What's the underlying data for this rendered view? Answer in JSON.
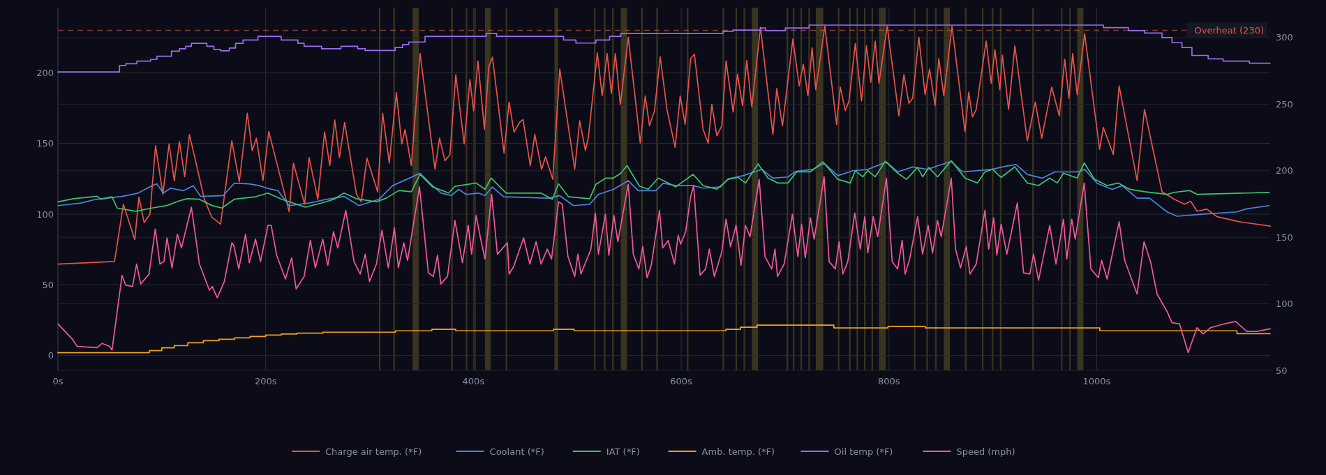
{
  "chart_data": {
    "type": "line",
    "xlim": [
      0,
      1167
    ],
    "xticks": [
      {
        "value": 0,
        "label": "0s"
      },
      {
        "value": 200,
        "label": "200s"
      },
      {
        "value": 400,
        "label": "400s"
      },
      {
        "value": 600,
        "label": "600s"
      },
      {
        "value": 800,
        "label": "800s"
      },
      {
        "value": 1000,
        "label": "1000s"
      }
    ],
    "ylim": [
      -10.5,
      246
    ],
    "yticks": [
      0,
      50,
      100,
      150,
      200
    ],
    "y2lim": [
      50,
      322.5
    ],
    "y2ticks": [
      50,
      100,
      150,
      200,
      250,
      300
    ],
    "grid": true,
    "legend": "bottom",
    "ref_lines": [
      {
        "axis": "y",
        "value": 230,
        "label": "Overheat (230)",
        "color": "#e5534b",
        "line_style": "dashed"
      }
    ],
    "bands": [
      {
        "axis": "x",
        "from": 309,
        "to": 310.5,
        "color": "#4a4224"
      },
      {
        "axis": "x",
        "from": 322.9,
        "to": 324.4,
        "color": "#4a4224"
      },
      {
        "axis": "x",
        "from": 341.4,
        "to": 347.4,
        "color": "#4a4224"
      },
      {
        "axis": "x",
        "from": 378.6,
        "to": 380.1,
        "color": "#4a4224"
      },
      {
        "axis": "x",
        "from": 392.6,
        "to": 394.1,
        "color": "#4a4224"
      },
      {
        "axis": "x",
        "from": 400.7,
        "to": 402.2,
        "color": "#4a4224"
      },
      {
        "axis": "x",
        "from": 411.1,
        "to": 416.6,
        "color": "#4a4224"
      },
      {
        "axis": "x",
        "from": 431,
        "to": 432.5,
        "color": "#4a4224"
      },
      {
        "axis": "x",
        "from": 478,
        "to": 481.5,
        "color": "#4a4224"
      },
      {
        "axis": "x",
        "from": 516,
        "to": 517.5,
        "color": "#4a4224"
      },
      {
        "axis": "x",
        "from": 525.6,
        "to": 527.1,
        "color": "#4a4224"
      },
      {
        "axis": "x",
        "from": 533.5,
        "to": 535,
        "color": "#4a4224"
      },
      {
        "axis": "x",
        "from": 541.9,
        "to": 547.9,
        "color": "#4a4224"
      },
      {
        "axis": "x",
        "from": 561.6,
        "to": 563.1,
        "color": "#4a4224"
      },
      {
        "axis": "x",
        "from": 576,
        "to": 577.5,
        "color": "#4a4224"
      },
      {
        "axis": "x",
        "from": 605.5,
        "to": 607,
        "color": "#4a4224"
      },
      {
        "axis": "x",
        "from": 639.8,
        "to": 641.3,
        "color": "#4a4224"
      },
      {
        "axis": "x",
        "from": 652.3,
        "to": 653.8,
        "color": "#4a4224"
      },
      {
        "axis": "x",
        "from": 660,
        "to": 661.5,
        "color": "#4a4224"
      },
      {
        "axis": "x",
        "from": 668,
        "to": 674,
        "color": "#4a4224"
      },
      {
        "axis": "x",
        "from": 701.5,
        "to": 703,
        "color": "#4a4224"
      },
      {
        "axis": "x",
        "from": 707.5,
        "to": 709,
        "color": "#4a4224"
      },
      {
        "axis": "x",
        "from": 714.8,
        "to": 716.3,
        "color": "#4a4224"
      },
      {
        "axis": "x",
        "from": 722.4,
        "to": 723.9,
        "color": "#4a4224"
      },
      {
        "axis": "x",
        "from": 729.6,
        "to": 736.8,
        "color": "#4a4224"
      },
      {
        "axis": "x",
        "from": 750.8,
        "to": 752.3,
        "color": "#4a4224"
      },
      {
        "axis": "x",
        "from": 761.6,
        "to": 763.1,
        "color": "#4a4224"
      },
      {
        "axis": "x",
        "from": 768.8,
        "to": 770.3,
        "color": "#4a4224"
      },
      {
        "axis": "x",
        "from": 776,
        "to": 777.5,
        "color": "#4a4224"
      },
      {
        "axis": "x",
        "from": 783.2,
        "to": 784.7,
        "color": "#4a4224"
      },
      {
        "axis": "x",
        "from": 790.4,
        "to": 796.9,
        "color": "#4a4224"
      },
      {
        "axis": "x",
        "from": 824,
        "to": 825.5,
        "color": "#4a4224"
      },
      {
        "axis": "x",
        "from": 836,
        "to": 837.5,
        "color": "#4a4224"
      },
      {
        "axis": "x",
        "from": 844.4,
        "to": 845.9,
        "color": "#4a4224"
      },
      {
        "axis": "x",
        "from": 852.8,
        "to": 858.7,
        "color": "#4a4224"
      },
      {
        "axis": "x",
        "from": 873.2,
        "to": 874.7,
        "color": "#4a4224"
      },
      {
        "axis": "x",
        "from": 889.5,
        "to": 891,
        "color": "#4a4224"
      },
      {
        "axis": "x",
        "from": 899.1,
        "to": 900.6,
        "color": "#4a4224"
      },
      {
        "axis": "x",
        "from": 906.8,
        "to": 908.3,
        "color": "#4a4224"
      },
      {
        "axis": "x",
        "from": 938,
        "to": 939.5,
        "color": "#4a4224"
      },
      {
        "axis": "x",
        "from": 965.6,
        "to": 967.1,
        "color": "#4a4224"
      },
      {
        "axis": "x",
        "from": 973.6,
        "to": 975.1,
        "color": "#4a4224"
      },
      {
        "axis": "x",
        "from": 981.2,
        "to": 987.2,
        "color": "#4a4224"
      }
    ],
    "series": [
      {
        "name": "Charge air temp. (*F)",
        "color": "#e5534b",
        "type": "line",
        "x": [
          0,
          54.5,
          63,
          74,
          78,
          83,
          88.6,
          94,
          101,
          107,
          112,
          117,
          122,
          126.6,
          141,
          148,
          156.6,
          167.4,
          174.6,
          182.3,
          187,
          191,
          197.4,
          203,
          222.6,
          226.7,
          237.5,
          241.8,
          250.2,
          256.7,
          261.7,
          266.5,
          271,
          276,
          287.4,
          292,
          297.5,
          307.8,
          312.6,
          319,
          325.8,
          331,
          334.2,
          340.2,
          348.6,
          363,
          367.4,
          372.6,
          377.4,
          383,
          391.1,
          396.6,
          400.2,
          404.3,
          410.6,
          414.7,
          418.3,
          429.5,
          434.3,
          439.1,
          444.7,
          447.8,
          454.7,
          459.1,
          465.6,
          469.4,
          476.4,
          483.1,
          497.5,
          502.3,
          507.8,
          510.7,
          519.3,
          523.9,
          528.7,
          532.8,
          536.6,
          541.4,
          549.1,
          560.6,
          565.4,
          569.5,
          574.3,
          579.8,
          586.3,
          594.2,
          599,
          603.8,
          609.1,
          612.7,
          621.1,
          625.9,
          629.5,
          634.3,
          639.1,
          643.2,
          650,
          654.2,
          659.1,
          663.1,
          668,
          676.3,
          688.3,
          692,
          697.5,
          707.5,
          713.6,
          717.6,
          722,
          726,
          729.6,
          738.3,
          749.6,
          753.2,
          758,
          761.6,
          767.6,
          773.6,
          778.4,
          782.5,
          786.8,
          790.4,
          798.3,
          809.6,
          814.4,
          819.2,
          822.8,
          828.8,
          834.8,
          839.1,
          844.4,
          848,
          852.8,
          860.7,
          873.2,
          876.8,
          880.4,
          884,
          893.6,
          898.4,
          902,
          906.8,
          909.2,
          915.2,
          921.2,
          933.2,
          940.9,
          947.1,
          956.7,
          964,
          969.2,
          973.3,
          976.9,
          981.2,
          988.4,
          1002.8,
          1006.4,
          1016,
          1021.6,
          1038.9,
          1046,
          1062.9,
          1074.9,
          1084.5,
          1090.5,
          1096.5,
          1106.1,
          1115.7,
          1137.3,
          1167
        ],
        "values": [
          64.7,
          66.5,
          107,
          82,
          112,
          94,
          100,
          148.4,
          114,
          149.6,
          123.7,
          151.4,
          126.4,
          156.3,
          110.5,
          98,
          92.9,
          151.9,
          122.8,
          171.3,
          144.9,
          153.7,
          123.7,
          158.4,
          101.7,
          136,
          107,
          140,
          110.5,
          158.1,
          134.3,
          166.5,
          140,
          164.8,
          114,
          108.7,
          139.6,
          115.8,
          171.3,
          136,
          185.9,
          149.6,
          159.9,
          134.3,
          213.6,
          131.7,
          153.7,
          137.8,
          142.2,
          198.6,
          149.6,
          195.1,
          173.1,
          208.3,
          159.9,
          203.9,
          211,
          143.1,
          179.2,
          158.1,
          165.1,
          166.9,
          134.3,
          156.3,
          131.7,
          140.5,
          124.6,
          202.5,
          131.7,
          166,
          144.9,
          154.6,
          214.1,
          183.6,
          213.6,
          185.4,
          213.6,
          177.5,
          225.1,
          150.2,
          183.6,
          162.5,
          173.1,
          211.3,
          174,
          147.2,
          183.6,
          163.4,
          210.1,
          213.1,
          159.9,
          150.2,
          177.5,
          155.4,
          162.5,
          208.3,
          172.2,
          199,
          176.6,
          208.7,
          175.7,
          232.1,
          156.3,
          188.9,
          162.5,
          223.7,
          190.7,
          206,
          183.6,
          217.7,
          188,
          233,
          163.4,
          189.8,
          173.1,
          180.1,
          220.7,
          180.1,
          218.9,
          193.3,
          222.4,
          192.5,
          233,
          169.5,
          198.6,
          178.4,
          181.9,
          225.1,
          184.5,
          202.5,
          176.6,
          210.1,
          183.6,
          233,
          158.4,
          186.3,
          168.7,
          174,
          222.4,
          192.5,
          216.3,
          188,
          212.4,
          174,
          218.9,
          151.9,
          179.2,
          153.7,
          189.8,
          169.5,
          209.6,
          181.9,
          213.6,
          184.5,
          227.7,
          145.8,
          161.3,
          142.2,
          190.7,
          123.7,
          174,
          115.8,
          110.5,
          107,
          109.1,
          102.1,
          103.5,
          98.2,
          94.6,
          91.5
        ]
      },
      {
        "name": "Coolant (*F)",
        "color": "#4f83e0",
        "type": "line",
        "axis": "y2",
        "x": [
          0,
          22.1,
          36.5,
          61.7,
          77.3,
          90.5,
          95.3,
          101.3,
          108.6,
          120.6,
          130.2,
          137.4,
          159,
          169.8,
          184.2,
          193.8,
          201,
          211.8,
          222.6,
          241.8,
          258.6,
          275.4,
          289.8,
          309,
          322.2,
          335.4,
          348.6,
          360.6,
          369,
          378.6,
          385.8,
          393,
          405,
          411.1,
          418.3,
          429.1,
          472.3,
          483.1,
          496.3,
          511.9,
          520.3,
          534.7,
          549.1,
          558.7,
          575.5,
          582.7,
          594.7,
          611.5,
          621.1,
          637.9,
          645.1,
          659.5,
          677.5,
          688.3,
          702.7,
          710,
          726.8,
          737.6,
          750.8,
          765.2,
          779.6,
          797.6,
          808.4,
          822.8,
          837.2,
          846.8,
          860,
          870.8,
          898.7,
          911.6,
          922.4,
          933.2,
          947.6,
          959.6,
          981.2,
          988.4,
          1000.4,
          1014.9,
          1024.5,
          1038.9,
          1050.9,
          1067.7,
          1077.3,
          1101.3,
          1134.9,
          1144.5,
          1166.1
        ],
        "values": [
          173.8,
          175.7,
          178.5,
          180.7,
          183.2,
          188.8,
          190.1,
          183.2,
          186.9,
          185,
          188.8,
          180.7,
          181.3,
          190.6,
          190.1,
          188.8,
          186.9,
          185,
          173.8,
          175.7,
          178.5,
          180.7,
          173.8,
          178.5,
          188.8,
          193.4,
          198.1,
          188.8,
          183.2,
          181.3,
          186,
          182.2,
          183.2,
          181.3,
          187.8,
          180.4,
          179.4,
          181.3,
          173.8,
          174.8,
          182.2,
          186,
          192.5,
          185,
          185,
          190.6,
          188.8,
          188.8,
          186.9,
          187.8,
          193.8,
          196.3,
          201,
          194.4,
          195.3,
          199.4,
          201,
          205.6,
          196.3,
          200,
          201,
          206.5,
          199.1,
          202.8,
          201,
          203.7,
          206.9,
          199.1,
          201,
          203.2,
          204.7,
          197.2,
          194.4,
          199.1,
          199.1,
          201,
          190.6,
          186,
          188.8,
          179.4,
          179.4,
          169.1,
          165.8,
          167.3,
          169.1,
          171.4,
          173.8
        ]
      },
      {
        "name": "IAT (*F)",
        "color": "#3cc46b",
        "type": "line",
        "x": [
          0,
          14.9,
          37.7,
          41.3,
          52.1,
          57,
          75,
          90.5,
          105,
          115.8,
          124.2,
          136.2,
          148.2,
          157.8,
          169.8,
          190.2,
          202.2,
          215.4,
          226.2,
          238.2,
          253.8,
          265.8,
          275.4,
          287.4,
          306.6,
          316.2,
          328.2,
          340.2,
          348.6,
          360.6,
          376.2,
          382.2,
          395.4,
          402.6,
          411.1,
          417.1,
          431.5,
          465.1,
          475.9,
          481.9,
          491.5,
          511.9,
          517.9,
          527.5,
          534.7,
          541.9,
          547.9,
          559.9,
          568.3,
          577.9,
          594.7,
          611.5,
          621.1,
          634.3,
          645.1,
          654.7,
          661.9,
          674,
          683.5,
          693.1,
          702.7,
          711.1,
          724.4,
          736.4,
          750.8,
          762.8,
          767.6,
          774.8,
          779.6,
          786.8,
          796.4,
          808.4,
          816.8,
          827.6,
          832.4,
          838.4,
          846.8,
          860,
          873.2,
          885.2,
          892.4,
          899.6,
          908,
          921.2,
          933.2,
          944,
          954.8,
          962,
          968,
          981.2,
          988,
          998,
          1010,
          1020.9,
          1031.7,
          1046.1,
          1067.7,
          1074.9,
          1089.3,
          1096.5,
          1166.1
        ],
        "values": [
          108.7,
          110.9,
          112.6,
          110.5,
          112.3,
          104.3,
          102,
          104.3,
          106.1,
          109.1,
          110.9,
          110.5,
          106.1,
          104.3,
          110.5,
          112.3,
          114.9,
          110.5,
          107.9,
          104.9,
          107.9,
          110.5,
          114.9,
          110.9,
          108.7,
          111.4,
          116.7,
          115.8,
          128.1,
          119.3,
          114.9,
          119.7,
          121.1,
          122,
          117.6,
          125.5,
          114.9,
          114.9,
          110.5,
          121.4,
          112.3,
          110.9,
          121.1,
          125.5,
          125.5,
          129,
          134.3,
          119.7,
          117.6,
          125.5,
          119.3,
          128.1,
          120.2,
          117.6,
          124.6,
          126,
          122,
          135.5,
          125.5,
          122,
          122,
          129.9,
          129.9,
          136.9,
          124.6,
          122,
          130.8,
          126.4,
          130.8,
          126.4,
          137.3,
          129,
          124.6,
          133,
          126.4,
          133,
          126.4,
          137.8,
          125.5,
          122,
          129.9,
          131.7,
          126,
          133.4,
          122,
          120.2,
          125.5,
          122,
          129,
          125.5,
          136.1,
          124.6,
          120.2,
          122,
          117.6,
          115.8,
          114,
          115.4,
          116.7,
          114,
          115.3
        ]
      },
      {
        "name": "Amb. temp. (*F)",
        "color": "#f0a020",
        "type": "step",
        "x": [
          0,
          88,
          100,
          112,
          125,
          140,
          155,
          170,
          185,
          200,
          215,
          230,
          255,
          325,
          360,
          383,
          477,
          497,
          643,
          657,
          673,
          747,
          799,
          835,
          1003,
          1135,
          1167
        ],
        "values": [
          2,
          3.5,
          5.5,
          7,
          9,
          10.5,
          11.5,
          12.5,
          13.5,
          14.5,
          15.2,
          15.8,
          16.5,
          17.5,
          18.5,
          17.5,
          18.5,
          17.5,
          18.5,
          20,
          21.5,
          19.5,
          20.5,
          19.5,
          17.5,
          15.5,
          15.5
        ]
      },
      {
        "name": "Oil temp (*F)",
        "color": "#9b6cf0",
        "type": "step",
        "axis": "y2",
        "x": [
          0,
          59.3,
          65.3,
          76,
          89.3,
          95.3,
          109.3,
          117,
          123,
          128.5,
          143.4,
          150.1,
          156.6,
          165,
          171,
          178.2,
          192.6,
          214.9,
          231,
          237,
          253.8,
          272.5,
          288.6,
          295.8,
          324.6,
          331.8,
          337.8,
          353.4,
          412.3,
          422.3,
          486.7,
          498.7,
          517.9,
          531.1,
          541.9,
          640.3,
          649.9,
          676.3,
          681.1,
          700.3,
          723.2,
          1006.4,
          1030.5,
          1046.1,
          1062.9,
          1072.5,
          1082.1,
          1091.7,
          1107.3,
          1121.7,
          1146.9,
          1167
        ],
        "values": [
          274.2,
          279.1,
          280.4,
          282.3,
          283.6,
          286,
          289.8,
          291.6,
          293.5,
          295.7,
          293.5,
          291.1,
          290.1,
          292.2,
          295.7,
          298.2,
          301,
          298.2,
          295.7,
          293.5,
          291.6,
          293.5,
          291.6,
          290.3,
          292.6,
          294.8,
          296.7,
          301,
          303.2,
          301,
          298.2,
          295.9,
          298.2,
          301,
          303.2,
          304.7,
          305.7,
          307.2,
          305.3,
          307.2,
          309.4,
          307.5,
          305.3,
          303.4,
          300,
          296.3,
          292.6,
          286.6,
          284.1,
          282.3,
          280.8,
          280.8
        ]
      },
      {
        "name": "Speed (mph)",
        "color": "#f0589a",
        "type": "line",
        "x": [
          0,
          13.7,
          18.5,
          37.7,
          42.5,
          49.7,
          52.1,
          61.7,
          65.3,
          71.8,
          75.7,
          79.7,
          87.7,
          93.7,
          98.2,
          102.1,
          105,
          109.8,
          115,
          118.9,
          128.5,
          136.2,
          145.8,
          148.6,
          153.4,
          160.2,
          167.4,
          169.3,
          174.1,
          180.6,
          184.2,
          190.2,
          195,
          202.2,
          205.3,
          210.6,
          219,
          225,
          229.3,
          237,
          243,
          247.8,
          255,
          259.8,
          265.3,
          269.4,
          277.1,
          285,
          291,
          295.8,
          299.9,
          306.6,
          311.9,
          318.1,
          323.9,
          327.7,
          333,
          336.6,
          348.1,
          356.6,
          361.4,
          365.4,
          368.6,
          375,
          382.2,
          389.4,
          395,
          398.3,
          402.6,
          407,
          411.1,
          417.5,
          423.1,
          432.7,
          434.3,
          438.7,
          448.3,
          454.3,
          460.3,
          465.1,
          471.1,
          475.2,
          481.9,
          485.5,
          491,
          497.5,
          500.6,
          503.5,
          513.1,
          517.4,
          520.3,
          527,
          530.4,
          535.2,
          539,
          549.1,
          553.9,
          559.2,
          563,
          567.1,
          571.2,
          579.1,
          582.2,
          587.5,
          593.5,
          597.1,
          599.5,
          604.3,
          609.1,
          612,
          618.2,
          623.5,
          627.1,
          631.9,
          639.1,
          643.2,
          647.5,
          652.8,
          657.6,
          661.9,
          666.3,
          675.1,
          680.7,
          687.1,
          690.3,
          692.7,
          699.1,
          707.1,
          712.3,
          715.9,
          719.5,
          724.4,
          728,
          737.6,
          742.4,
          748.4,
          752,
          755.6,
          760.4,
          767.1,
          772.4,
          776.7,
          779.6,
          784.9,
          789.2,
          797.6,
          803.1,
          808.4,
          812.7,
          815.6,
          819.9,
          827.6,
          832.4,
          837.7,
          842,
          846.8,
          850.3,
          860,
          864.1,
          868.9,
          874.4,
          878,
          884,
          892.4,
          896,
          900.8,
          903.9,
          908,
          913.5,
          923.6,
          929.6,
          935.6,
          939.2,
          944,
          954.8,
          960.8,
          968,
          971.2,
          976,
          979.3,
          988,
          994.4,
          1001.6,
          1004.8,
          1010,
          1021.6,
          1026.9,
          1038.9,
          1045.6,
          1052.1,
          1058.1,
          1067.7,
          1072.5,
          1079.7,
          1088.1,
          1096.5,
          1102.5,
          1109.7,
          1122.9,
          1133.7,
          1144.5,
          1154.1,
          1167
        ],
        "values": [
          22.4,
          11.8,
          6.5,
          5.6,
          8.6,
          6.5,
          3.9,
          56.7,
          49.7,
          48.8,
          64.7,
          50.6,
          57.6,
          89.4,
          64.7,
          66.5,
          83.2,
          62,
          85.8,
          76.1,
          104.9,
          64.7,
          46.2,
          48.8,
          40.9,
          52.3,
          79.7,
          77.9,
          61.2,
          85.8,
          65.6,
          82.3,
          66.5,
          92,
          92,
          70.9,
          54.1,
          69.1,
          47.1,
          55.9,
          81.4,
          62,
          82.3,
          63.8,
          87.6,
          76.1,
          102.6,
          66.5,
          57.6,
          71.7,
          52.3,
          64.7,
          88.5,
          62,
          90.2,
          62,
          79.7,
          67.3,
          119.3,
          58.5,
          55.9,
          70.9,
          50.6,
          55.9,
          95.5,
          65.6,
          92,
          71.7,
          99.1,
          82.3,
          68.2,
          114,
          71.7,
          79.7,
          57.6,
          62.9,
          83.2,
          64.7,
          80.5,
          64.7,
          75.3,
          68.2,
          108.7,
          107,
          70,
          55.9,
          71.7,
          57.6,
          75.3,
          100.8,
          71.7,
          99.9,
          70.9,
          99.1,
          80.5,
          121.1,
          71.7,
          61.2,
          77,
          55,
          63.8,
          102.6,
          76.1,
          81.4,
          64.7,
          85,
          78.8,
          87.6,
          112.3,
          120.2,
          56.8,
          61.2,
          75.3,
          55.9,
          73.5,
          96.4,
          77,
          92,
          63.8,
          92,
          84.1,
          124.6,
          70,
          61.2,
          75.3,
          55.9,
          64.7,
          99.9,
          70,
          92.9,
          69.1,
          97.3,
          82.3,
          126.4,
          66.5,
          61.2,
          80.5,
          57.6,
          66.5,
          100.8,
          75.3,
          98.2,
          72.6,
          98.2,
          84.1,
          125.5,
          66.5,
          61.2,
          81.4,
          57.6,
          68.2,
          98.2,
          71.7,
          92,
          72.6,
          95.5,
          84.1,
          125.5,
          75.3,
          62,
          77,
          57.6,
          64.7,
          102.6,
          75.3,
          97.3,
          70.9,
          92.9,
          71.7,
          107.9,
          58.5,
          57.6,
          71.7,
          53.2,
          92,
          64.7,
          96.4,
          68.2,
          96.4,
          82.3,
          122,
          61.2,
          55,
          67.3,
          54.1,
          94.6,
          67.3,
          43.5,
          80.5,
          65.6,
          43.5,
          31.2,
          23.2,
          22.4,
          2.1,
          19.7,
          15.3,
          19.7,
          22.4,
          24.1,
          17.1,
          17.1,
          18.9
        ]
      }
    ]
  }
}
